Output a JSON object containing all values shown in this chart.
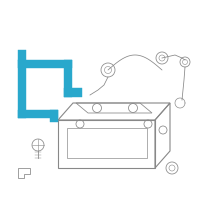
{
  "bg_color": "#ffffff",
  "highlight_color": "#29a8cc",
  "outline_color": "#888888",
  "lw": 0.8,
  "fig_size": [
    2.0,
    2.0
  ],
  "dpi": 100
}
